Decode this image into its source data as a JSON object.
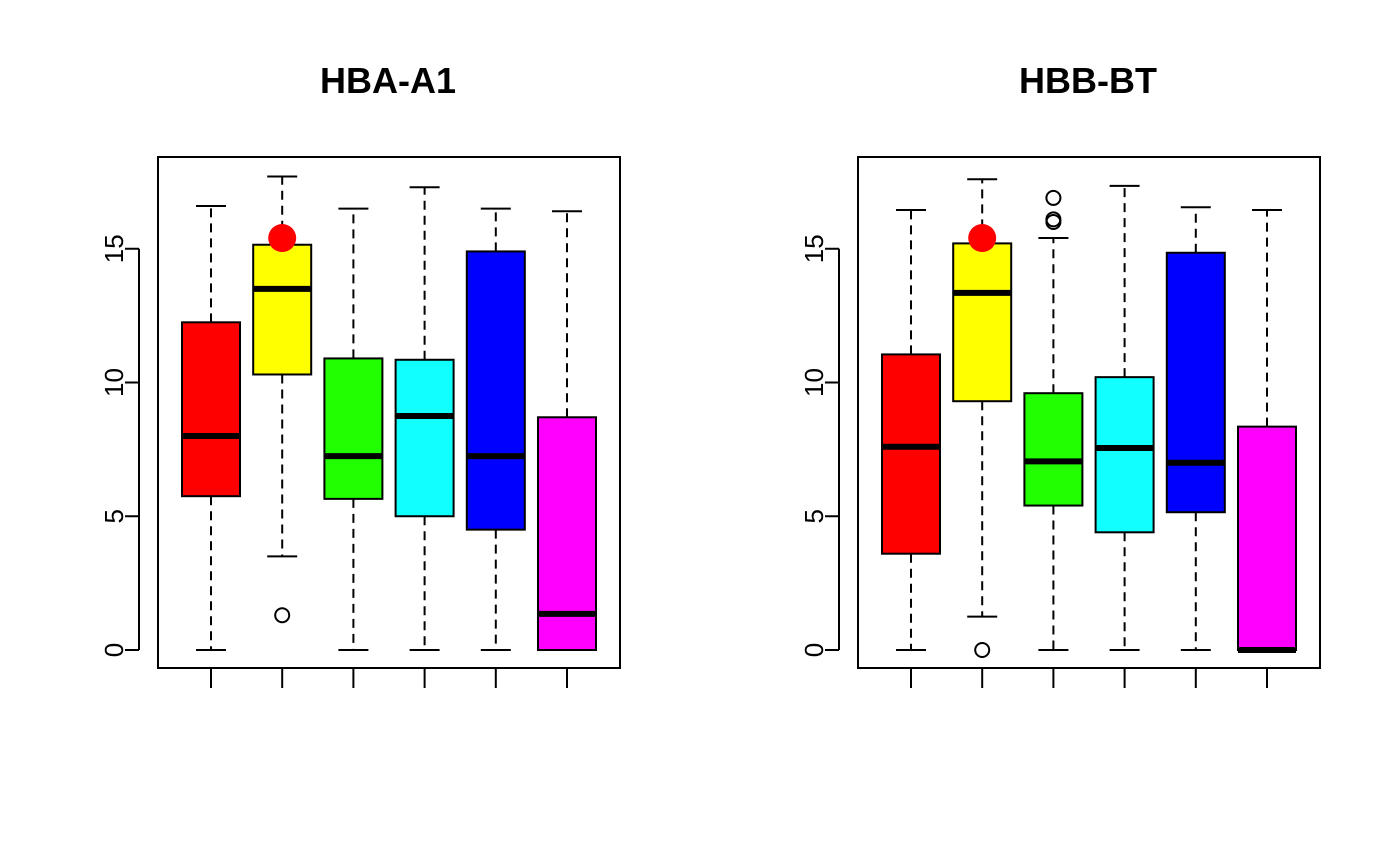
{
  "chart_data": [
    {
      "type": "boxplot",
      "title": "HBA-A1",
      "xlabel": "",
      "ylabel": "",
      "ylim": [
        0,
        18
      ],
      "yticks": [
        0,
        5,
        10,
        15
      ],
      "grid": false,
      "legend": "none",
      "box_colors": [
        "#ff0000",
        "#ffff00",
        "#22ff00",
        "#11ffff",
        "#0000ff",
        "#ff00ff"
      ],
      "highlight": {
        "box_index": 1,
        "value": 15.4,
        "color": "#ff0000"
      },
      "boxes": [
        {
          "whisker_low": 0.0,
          "q1": 5.75,
          "median": 8.0,
          "q3": 12.25,
          "whisker_high": 16.6,
          "outliers": []
        },
        {
          "whisker_low": 3.5,
          "q1": 10.3,
          "median": 13.5,
          "q3": 15.15,
          "whisker_high": 17.7,
          "outliers": [
            1.3
          ]
        },
        {
          "whisker_low": 0.0,
          "q1": 5.65,
          "median": 7.25,
          "q3": 10.9,
          "whisker_high": 16.5,
          "outliers": []
        },
        {
          "whisker_low": 0.0,
          "q1": 5.0,
          "median": 8.75,
          "q3": 10.85,
          "whisker_high": 17.3,
          "outliers": []
        },
        {
          "whisker_low": 0.0,
          "q1": 4.5,
          "median": 7.25,
          "q3": 14.9,
          "whisker_high": 16.5,
          "outliers": []
        },
        {
          "whisker_low": 0.0,
          "q1": 0.0,
          "median": 1.35,
          "q3": 8.7,
          "whisker_high": 16.4,
          "outliers": []
        }
      ]
    },
    {
      "type": "boxplot",
      "title": "HBB-BT",
      "xlabel": "",
      "ylabel": "",
      "ylim": [
        0,
        18
      ],
      "yticks": [
        0,
        5,
        10,
        15
      ],
      "grid": false,
      "legend": "none",
      "box_colors": [
        "#ff0000",
        "#ffff00",
        "#22ff00",
        "#11ffff",
        "#0000ff",
        "#ff00ff"
      ],
      "highlight": {
        "box_index": 1,
        "value": 15.4,
        "color": "#ff0000"
      },
      "boxes": [
        {
          "whisker_low": 0.0,
          "q1": 3.6,
          "median": 7.6,
          "q3": 11.05,
          "whisker_high": 16.45,
          "outliers": []
        },
        {
          "whisker_low": 1.25,
          "q1": 9.3,
          "median": 13.35,
          "q3": 15.2,
          "whisker_high": 17.6,
          "outliers": [
            0.0
          ]
        },
        {
          "whisker_low": 0.0,
          "q1": 5.4,
          "median": 7.05,
          "q3": 9.6,
          "whisker_high": 15.4,
          "outliers": [
            16.0,
            16.1,
            16.9
          ]
        },
        {
          "whisker_low": 0.0,
          "q1": 4.4,
          "median": 7.55,
          "q3": 10.2,
          "whisker_high": 17.35,
          "outliers": []
        },
        {
          "whisker_low": 0.0,
          "q1": 5.15,
          "median": 7.0,
          "q3": 14.85,
          "whisker_high": 16.55,
          "outliers": []
        },
        {
          "whisker_low": 0.0,
          "q1": 0.0,
          "median": 0.0,
          "q3": 8.35,
          "whisker_high": 16.45,
          "outliers": []
        }
      ]
    }
  ]
}
